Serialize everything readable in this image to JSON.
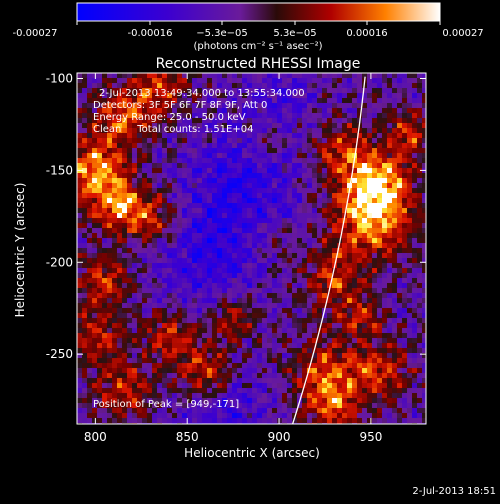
{
  "colorbar": {
    "ticks": [
      "-0.00027",
      "-0.00016",
      "−5.3e−05",
      "5.3e−05",
      "0.00016",
      "0.00027"
    ],
    "unit_label": "(photons cm⁻² s⁻¹ asec⁻²)"
  },
  "chart_data": {
    "type": "heatmap",
    "title": "Reconstructed RHESSI Image",
    "xlabel": "Heliocentric X (arcsec)",
    "ylabel": "Heliocentric Y (arcsec)",
    "xlim": [
      790,
      980
    ],
    "ylim": [
      -288,
      -97
    ],
    "xticks": [
      800,
      850,
      900,
      950
    ],
    "yticks": [
      -100,
      -150,
      -200,
      -250
    ],
    "zlim": [
      -0.00027,
      0.00027
    ],
    "colormap": "rainbow",
    "annotations": {
      "time": "2-Jul-2013 13:49:34.000 to 13:55:34.000",
      "detectors": "Detectors: 3F 5F 6F 7F 8F 9F, Att 0",
      "energy": "Energy Range: 25.0 - 50.0 keV",
      "clean": "Clean     Total counts: 1.51E+04",
      "peak": "Position of Peak = [949,-171]"
    },
    "peak": [
      949,
      -171
    ],
    "limb": "solar limb curve"
  },
  "footer": {
    "timestamp": "2-Jul-2013 18:51"
  }
}
